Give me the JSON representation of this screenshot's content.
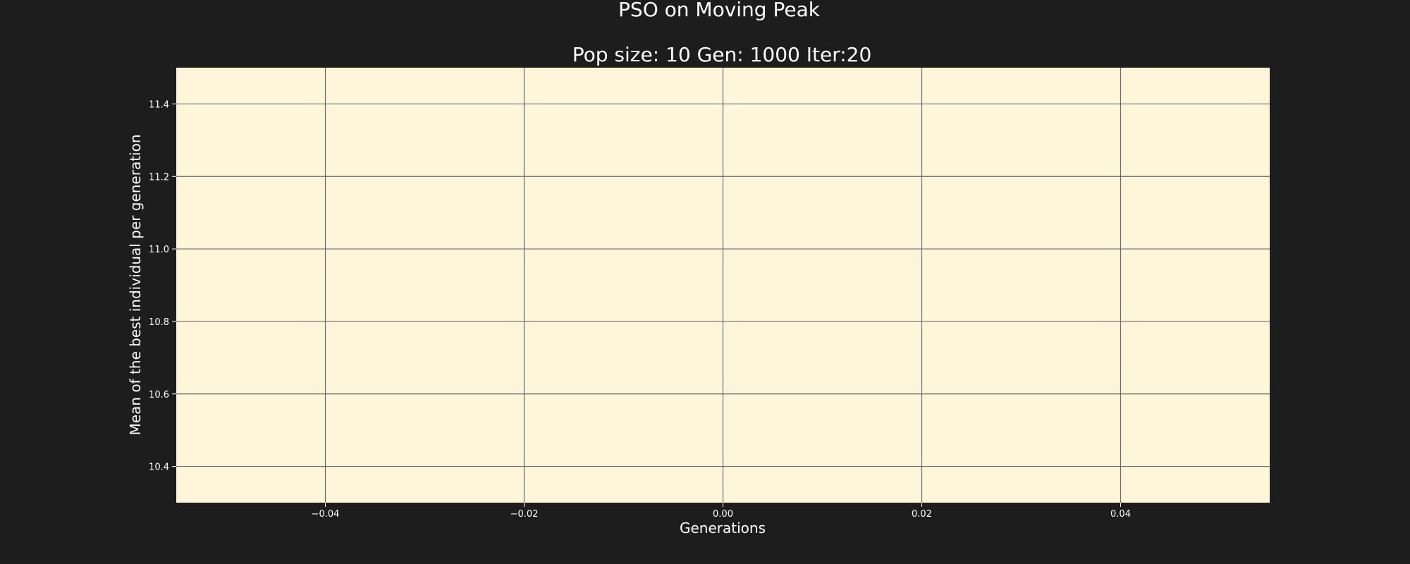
{
  "figure": {
    "background_color": "#1d1d1d",
    "text_color": "#ffffff"
  },
  "chart_data": {
    "type": "line",
    "title": "PSO on Moving Peak",
    "subtitle": "Pop size: 10  Gen: 1000  Iter:20",
    "xlabel": "Generations",
    "ylabel": "Mean of the best individual per generation",
    "xlim": [
      -0.055,
      0.055
    ],
    "ylim": [
      10.3,
      11.5
    ],
    "xticks": [
      -0.04,
      -0.02,
      0.0,
      0.02,
      0.04
    ],
    "xtick_labels": [
      "−0.04",
      "−0.02",
      "0.00",
      "0.02",
      "0.04"
    ],
    "yticks": [
      10.4,
      10.6,
      10.8,
      11.0,
      11.2,
      11.4
    ],
    "ytick_labels": [
      "10.4",
      "10.6",
      "10.8",
      "11.0",
      "11.2",
      "11.4"
    ],
    "grid": true,
    "series": [],
    "plot_background": "#fff5db",
    "grid_color": "#6b6b6b"
  }
}
